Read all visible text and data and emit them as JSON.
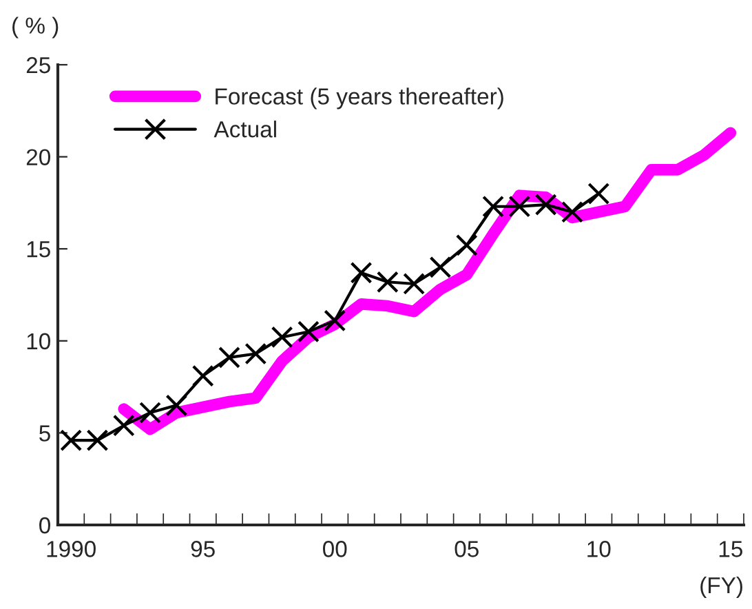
{
  "chart_data": {
    "type": "line",
    "xlabel": "(FY)",
    "ylabel": "( % )",
    "x": [
      1990,
      1991,
      1992,
      1993,
      1994,
      1995,
      1996,
      1997,
      1998,
      1999,
      2000,
      2001,
      2002,
      2003,
      2004,
      2005,
      2006,
      2007,
      2008,
      2009,
      2010,
      2011,
      2012,
      2013,
      2014,
      2015
    ],
    "series": [
      {
        "name": "Forecast (5 years thereafter)",
        "color": "#ff00ff",
        "marker": "none",
        "values": [
          null,
          null,
          6.3,
          5.2,
          6.1,
          6.4,
          6.7,
          6.9,
          8.9,
          10.2,
          10.9,
          12.0,
          11.9,
          11.6,
          12.8,
          13.6,
          15.8,
          17.9,
          17.8,
          16.7,
          17.0,
          17.3,
          19.3,
          19.3,
          20.1,
          21.3
        ]
      },
      {
        "name": "Actual",
        "color": "#000000",
        "marker": "cross",
        "values": [
          4.6,
          4.6,
          5.4,
          6.1,
          6.5,
          8.1,
          9.1,
          9.3,
          10.2,
          10.5,
          11.1,
          13.7,
          13.2,
          13.1,
          14.0,
          15.2,
          17.3,
          17.3,
          17.4,
          17.0,
          18.0,
          null,
          null,
          null,
          null,
          null
        ]
      }
    ],
    "xlim": [
      1989.5,
      2015.5
    ],
    "xticks": [
      {
        "value": 1990,
        "label": "1990"
      },
      {
        "value": 1995,
        "label": "95"
      },
      {
        "value": 2000,
        "label": "00"
      },
      {
        "value": 2005,
        "label": "05"
      },
      {
        "value": 2010,
        "label": "10"
      },
      {
        "value": 2015,
        "label": "15"
      },
      {
        "value": 1989.5,
        "label": null
      },
      {
        "value": 1990.5,
        "label": null
      },
      {
        "value": 1991.5,
        "label": null
      },
      {
        "value": 1992.5,
        "label": null
      },
      {
        "value": 1993.5,
        "label": null
      },
      {
        "value": 1994.5,
        "label": null
      },
      {
        "value": 1995.5,
        "label": null
      },
      {
        "value": 1996.5,
        "label": null
      },
      {
        "value": 1997.5,
        "label": null
      },
      {
        "value": 1998.5,
        "label": null
      },
      {
        "value": 1999.5,
        "label": null
      },
      {
        "value": 2000.5,
        "label": null
      },
      {
        "value": 2001.5,
        "label": null
      },
      {
        "value": 2002.5,
        "label": null
      },
      {
        "value": 2003.5,
        "label": null
      },
      {
        "value": 2004.5,
        "label": null
      },
      {
        "value": 2005.5,
        "label": null
      },
      {
        "value": 2006.5,
        "label": null
      },
      {
        "value": 2007.5,
        "label": null
      },
      {
        "value": 2008.5,
        "label": null
      },
      {
        "value": 2009.5,
        "label": null
      },
      {
        "value": 2010.5,
        "label": null
      },
      {
        "value": 2011.5,
        "label": null
      },
      {
        "value": 2012.5,
        "label": null
      },
      {
        "value": 2013.5,
        "label": null
      },
      {
        "value": 2014.5,
        "label": null
      },
      {
        "value": 2015.5,
        "label": null
      }
    ],
    "ylim": [
      0,
      25
    ],
    "yticks": [
      0,
      5,
      10,
      15,
      20,
      25
    ],
    "grid": false,
    "legend": "top left",
    "line_style": "solid"
  }
}
